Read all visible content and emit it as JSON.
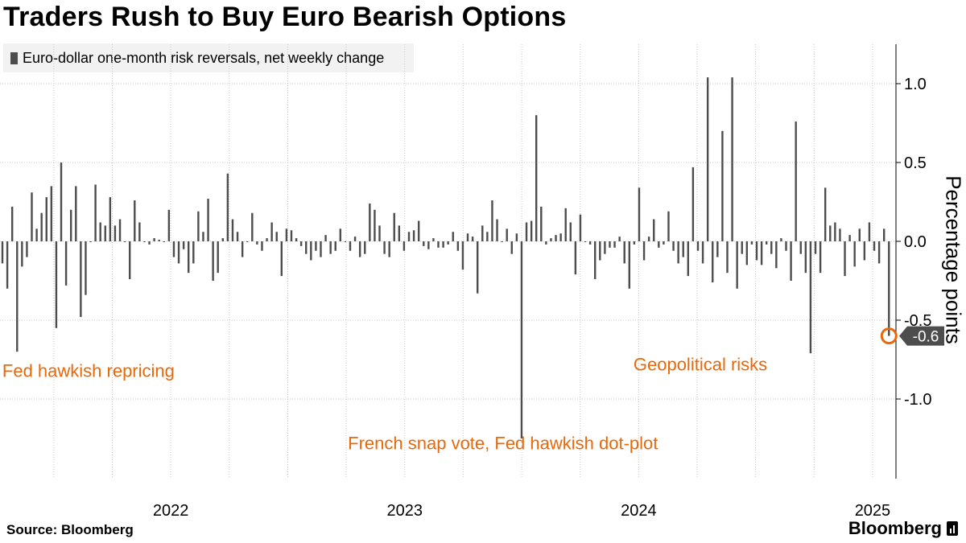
{
  "title": "Traders Rush to Buy Euro Bearish Options",
  "legend_label": "Euro-dollar one-month risk reversals, net weekly change",
  "source": "Source: Bloomberg",
  "brand": "Bloomberg",
  "colors": {
    "bar": "#4d4d4d",
    "grid": "#c8c8c8",
    "annotation": "#e8680a",
    "callout_bg": "#4d4d4d"
  },
  "chart_data": {
    "type": "bar",
    "ylabel": "Percentage points",
    "ylim": [
      -1.35,
      1.25
    ],
    "yticks": [
      1.0,
      0.5,
      0.0,
      -0.5,
      -1.0
    ],
    "ytick_labels": [
      "1.0",
      "0.5",
      "0.0",
      "-0.5",
      "-1.0"
    ],
    "x_ticks": [
      {
        "label": "2022",
        "value": 2022.0
      },
      {
        "label": "2023",
        "value": 2023.0
      },
      {
        "label": "2024",
        "value": 2024.0
      },
      {
        "label": "2025",
        "value": 2025.0
      }
    ],
    "x_range": [
      2021.77,
      2025.6
    ],
    "grid": true,
    "series": [
      {
        "values": [
          -0.14,
          -0.3,
          0.22,
          -0.7,
          -0.16,
          -0.1,
          0.31,
          0.08,
          0.18,
          0.28,
          0.35,
          -0.55,
          0.5,
          -0.28,
          0.2,
          0.35,
          -0.48,
          -0.34,
          0.0,
          0.36,
          0.12,
          0.1,
          0.28,
          0.1,
          0.14,
          0.0,
          -0.24,
          0.26,
          0.12,
          0.0,
          -0.02,
          0.02,
          0.01,
          0.0,
          0.2,
          -0.1,
          -0.14,
          -0.05,
          -0.2,
          -0.14,
          0.19,
          0.06,
          0.27,
          -0.25,
          -0.2,
          0.02,
          0.43,
          0.14,
          0.06,
          -0.1,
          0.0,
          0.18,
          -0.02,
          -0.06,
          0.02,
          0.12,
          0.06,
          -0.22,
          0.08,
          0.07,
          0.02,
          -0.03,
          -0.08,
          -0.12,
          -0.06,
          -0.1,
          0.04,
          -0.08,
          -0.06,
          0.08,
          0.0,
          -0.06,
          0.03,
          -0.1,
          -0.08,
          0.24,
          0.2,
          0.1,
          -0.08,
          -0.1,
          0.18,
          0.1,
          -0.06,
          0.06,
          0.07,
          0.13,
          -0.03,
          -0.05,
          0.02,
          -0.04,
          -0.04,
          -0.02,
          0.06,
          -0.06,
          -0.18,
          0.05,
          0.03,
          -0.33,
          0.1,
          0.06,
          0.26,
          0.14,
          0.0,
          0.08,
          -0.08,
          0.05,
          -1.25,
          0.12,
          0.13,
          0.8,
          0.22,
          -0.02,
          0.02,
          0.04,
          0.05,
          0.21,
          0.12,
          -0.21,
          0.17,
          0.0,
          -0.02,
          -0.24,
          -0.12,
          -0.08,
          -0.04,
          -0.04,
          0.03,
          -0.14,
          -0.3,
          -0.02,
          0.34,
          -0.12,
          0.03,
          0.14,
          -0.04,
          -0.02,
          0.19,
          -0.06,
          -0.14,
          -0.1,
          -0.22,
          0.47,
          -0.06,
          -0.14,
          1.04,
          -0.26,
          -0.1,
          0.7,
          -0.2,
          1.04,
          -0.3,
          -0.08,
          -0.15,
          -0.02,
          -0.12,
          -0.15,
          -0.02,
          -0.08,
          -0.17,
          0.02,
          -0.06,
          -0.25,
          0.76,
          -0.08,
          -0.2,
          -0.71,
          -0.08,
          -0.2,
          0.34,
          0.1,
          0.12,
          0.08,
          -0.22,
          0.04,
          -0.16,
          0.08,
          -0.12,
          0.12,
          -0.06,
          -0.14,
          0.08,
          -0.6
        ]
      }
    ],
    "annotations": [
      {
        "text": "Fed hawkish repricing",
        "x": 2021.78,
        "y": -0.86,
        "anchor": "start"
      },
      {
        "text": "French snap vote, Fed hawkish dot-plot",
        "x": 2023.92,
        "y": -1.32,
        "anchor": "middle"
      },
      {
        "text": "Geopolitical risks",
        "x": 2025.05,
        "y": -0.82,
        "anchor": "end"
      }
    ],
    "last_value_label": "-0.6",
    "last_value": -0.6
  }
}
